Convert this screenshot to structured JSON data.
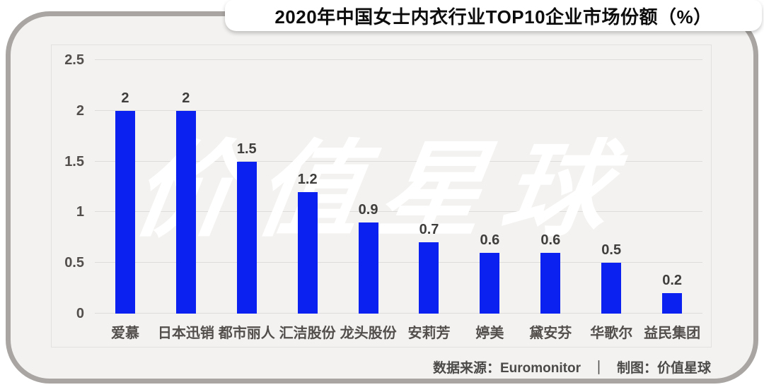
{
  "title": "2020年中国女士内衣行业TOP10企业市场份额（%）",
  "watermark": "价值星球",
  "footer": {
    "source": "数据来源：Euromonitor",
    "separator": "｜",
    "credit": "制图：价值星球"
  },
  "colors": {
    "bar": "#0b21f0",
    "card_bg": "#f3f2f0",
    "card_border": "#a8a5a2",
    "grid": "#dddcda",
    "plot_border": "#e2e1df",
    "axis_label": "#524f4d",
    "value_label": "#3f3e3d",
    "title_text": "#0d0d0d",
    "watermark_text": "#ffffff"
  },
  "chart_data": {
    "type": "bar",
    "title": "2020年中国女士内衣行业TOP10企业市场份额（%）",
    "categories": [
      "爱慕",
      "日本迅销",
      "都市丽人",
      "汇洁股份",
      "龙头股份",
      "安莉芳",
      "婷美",
      "黛安芬",
      "华歌尔",
      "益民集团"
    ],
    "values": [
      2,
      2,
      1.5,
      1.2,
      0.9,
      0.7,
      0.6,
      0.6,
      0.5,
      0.2
    ],
    "xlabel": "",
    "ylabel": "",
    "ylim": [
      0,
      2.5
    ],
    "yticks": [
      0,
      0.5,
      1,
      1.5,
      2,
      2.5
    ],
    "grid": true,
    "legend": false,
    "bar_color": "#0b21f0"
  }
}
